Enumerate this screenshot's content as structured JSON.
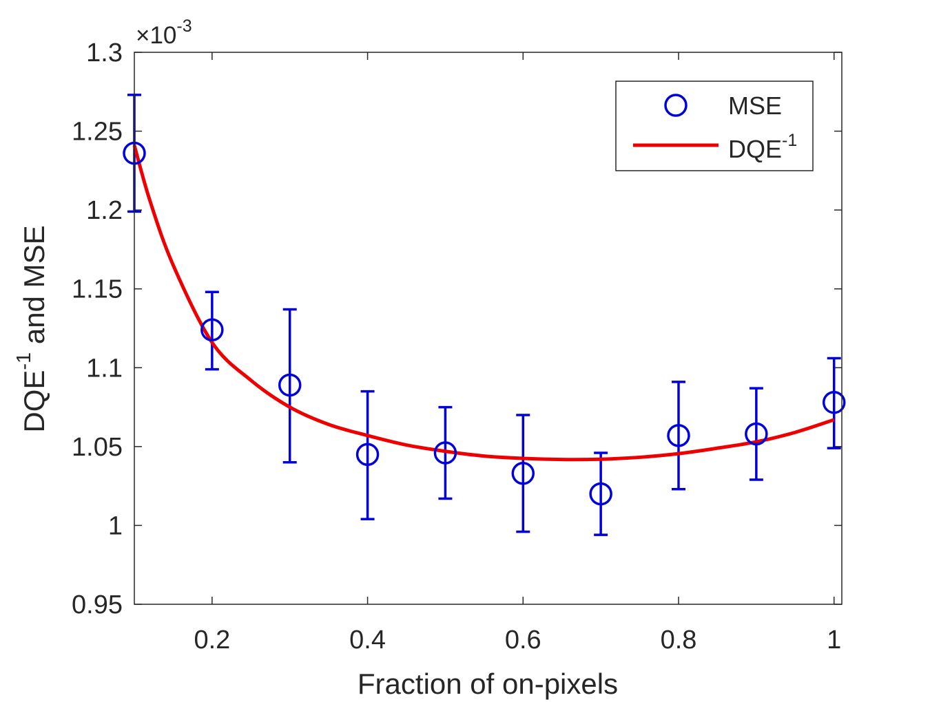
{
  "chart_data": {
    "type": "scatter",
    "title": "",
    "xlabel": "Fraction of on-pixels",
    "ylabel_main": "DQE",
    "ylabel_sup": "-1",
    "ylabel_rest": " and MSE",
    "exponent_prefix": "×10",
    "exponent_power": "-3",
    "xlim": [
      0.1,
      1.01
    ],
    "ylim": [
      0.95,
      1.3
    ],
    "x_ticks": [
      0.2,
      0.4,
      0.6,
      0.8,
      1
    ],
    "x_tick_labels": [
      "0.2",
      "0.4",
      "0.6",
      "0.8",
      "1"
    ],
    "y_ticks": [
      0.95,
      1.0,
      1.05,
      1.1,
      1.15,
      1.2,
      1.25,
      1.3
    ],
    "y_tick_labels": [
      "0.95",
      "1",
      "1.05",
      "1.1",
      "1.15",
      "1.2",
      "1.25",
      "1.3"
    ],
    "legend_position": "top-right",
    "series": [
      {
        "name": "MSE",
        "kind": "errorbar-markers",
        "color": "#0000dd",
        "x": [
          0.1,
          0.2,
          0.3,
          0.4,
          0.5,
          0.6,
          0.7,
          0.8,
          0.9,
          1.0
        ],
        "y": [
          1.236,
          1.124,
          1.089,
          1.045,
          1.046,
          1.033,
          1.02,
          1.057,
          1.058,
          1.078
        ],
        "err_low": [
          1.199,
          1.099,
          1.04,
          1.004,
          1.017,
          0.996,
          0.994,
          1.023,
          1.029,
          1.049
        ],
        "err_high": [
          1.273,
          1.148,
          1.137,
          1.085,
          1.075,
          1.07,
          1.046,
          1.091,
          1.087,
          1.106
        ]
      },
      {
        "name_main": "DQE",
        "name_sup": "-1",
        "kind": "line",
        "color": "#ee0000",
        "x": [
          0.1,
          0.12,
          0.15,
          0.2,
          0.25,
          0.3,
          0.35,
          0.4,
          0.45,
          0.5,
          0.55,
          0.6,
          0.65,
          0.7,
          0.75,
          0.8,
          0.85,
          0.9,
          0.95,
          1.0
        ],
        "y": [
          1.241,
          1.206,
          1.165,
          1.116,
          1.092,
          1.075,
          1.064,
          1.057,
          1.051,
          1.047,
          1.044,
          1.0425,
          1.0418,
          1.042,
          1.0432,
          1.0455,
          1.049,
          1.053,
          1.059,
          1.067
        ]
      }
    ]
  }
}
